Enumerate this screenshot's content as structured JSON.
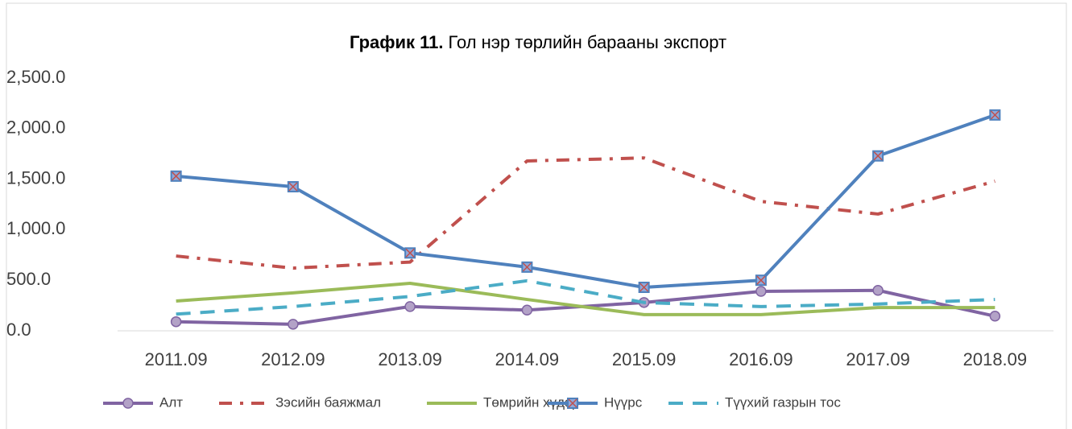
{
  "chart_data": {
    "type": "line",
    "title": [
      "График 11.",
      "Гол нэр төрлийн барааны экспорт"
    ],
    "categories": [
      "2011.09",
      "2012.09",
      "2013.09",
      "2014.09",
      "2015.09",
      "2016.09",
      "2017.09",
      "2018.09"
    ],
    "series": [
      {
        "name": "Алт",
        "color": "#8064a2",
        "dash": "solid",
        "marker": "circle",
        "values": [
          90,
          65,
          240,
          205,
          280,
          390,
          400,
          145
        ]
      },
      {
        "name": "Зэсийн баяжмал",
        "color": "#c0504d",
        "dash": "dashdot",
        "marker": "none",
        "values": [
          740,
          620,
          680,
          1680,
          1710,
          1280,
          1155,
          1480
        ]
      },
      {
        "name": "Төмрийн хүдэр",
        "color": "#9bbb59",
        "dash": "solid",
        "marker": "none",
        "values": [
          295,
          375,
          470,
          310,
          160,
          160,
          230,
          230
        ]
      },
      {
        "name": "Нүүрс",
        "color": "#4f81bd",
        "dash": "solid",
        "marker": "square-x",
        "values": [
          1530,
          1425,
          770,
          630,
          430,
          500,
          1730,
          2135
        ]
      },
      {
        "name": "Түүхий газрын тос",
        "color": "#4bacc6",
        "dash": "dash",
        "marker": "none",
        "values": [
          165,
          240,
          340,
          495,
          280,
          240,
          265,
          310
        ]
      }
    ],
    "ylim": [
      0,
      2500
    ],
    "yticks": [
      {
        "value": 0,
        "label": "0.0"
      },
      {
        "value": 500,
        "label": "500.0"
      },
      {
        "value": 1000,
        "label": "1,000.0"
      },
      {
        "value": 1500,
        "label": "1,500.0"
      },
      {
        "value": 2000,
        "label": "2,000.0"
      },
      {
        "value": 2500,
        "label": "2,500.0"
      }
    ],
    "grid": false,
    "legend": "bottom"
  }
}
